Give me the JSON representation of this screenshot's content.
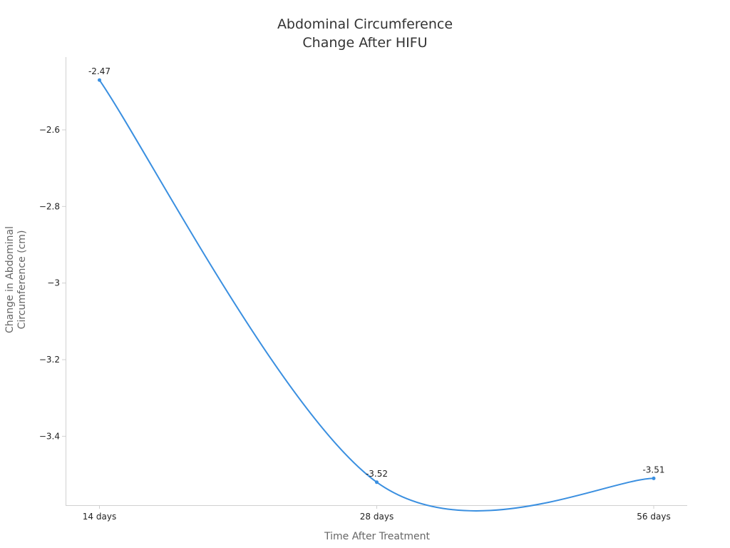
{
  "chart_data": {
    "type": "line",
    "title": [
      "Abdominal Circumference",
      "Change After HIFU"
    ],
    "xlabel": "Time After Treatment",
    "ylabel": [
      "Change in Abdominal",
      "Circumference (cm)"
    ],
    "categories": [
      "14 days",
      "28 days",
      "56 days"
    ],
    "series": [
      {
        "values": [
          -2.47,
          -3.52,
          -3.51
        ],
        "color": "#3a8fe0"
      }
    ],
    "data_labels": [
      "-2.47",
      "-3.52",
      "-3.51"
    ],
    "y_ticks": [
      -2.6,
      -2.8,
      -3,
      -3.2,
      -3.4
    ],
    "y_tick_labels": [
      "−2.6",
      "−2.8",
      "−3",
      "−3.2",
      "−3.4"
    ],
    "ylim": [
      -3.58,
      -2.41
    ],
    "grid": false,
    "smooth": true,
    "legend": "none"
  }
}
